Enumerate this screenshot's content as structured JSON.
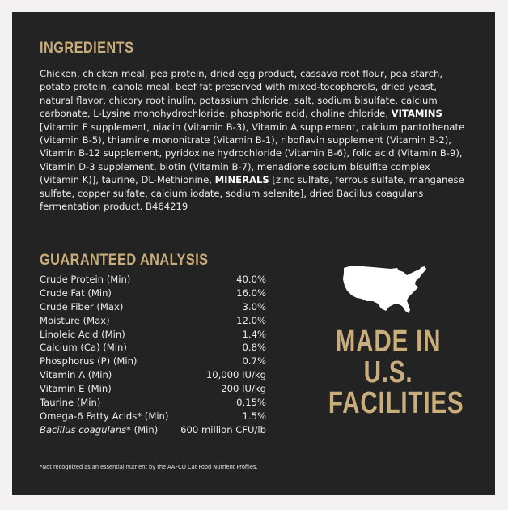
{
  "ingredients": {
    "heading": "INGREDIENTS",
    "part1": "Chicken, chicken meal, pea protein, dried egg product, cassava root flour, pea starch, potato protein, canola meal, beef fat preserved with mixed-tocopherols, dried yeast, natural flavor, chicory root inulin, potassium chloride, salt, sodium bisulfate, calcium carbonate, L-Lysine monohydrochloride, phosphoric acid, choline chloride, ",
    "vitamins_label": "VITAMINS",
    "part2": " [Vitamin E supplement, niacin (Vitamin B-3), Vitamin A supplement, calcium pantothenate (Vitamin B-5), thiamine mononitrate (Vitamin B-1), riboflavin supplement (Vitamin B-2), Vitamin B-12 supplement, pyridoxine hydrochloride (Vitamin B-6), folic acid (Vitamin B-9), Vitamin D-3 supplement, biotin (Vitamin B-7), menadione sodium bisulfite complex (Vitamin K)], taurine, DL-Methionine, ",
    "minerals_label": "MINERALS",
    "part3": " [zinc sulfate, ferrous sulfate, manganese sulfate, copper sulfate, calcium iodate, sodium selenite], dried Bacillus coagulans fermentation product. B464219"
  },
  "analysis": {
    "heading": "GUARANTEED ANALYSIS",
    "rows": [
      {
        "label": "Crude Protein (Min)",
        "value": "40.0%"
      },
      {
        "label": "Crude Fat (Min)",
        "value": "16.0%"
      },
      {
        "label": "Crude Fiber (Max)",
        "value": "3.0%"
      },
      {
        "label": "Moisture (Max)",
        "value": "12.0%"
      },
      {
        "label": "Linoleic Acid (Min)",
        "value": "1.4%"
      },
      {
        "label": "Calcium (Ca) (Min)",
        "value": "0.8%"
      },
      {
        "label": "Phosphorus (P) (Min)",
        "value": "0.7%"
      },
      {
        "label": "Vitamin A (Min)",
        "value": "10,000 IU/kg"
      },
      {
        "label": "Vitamin E (Min)",
        "value": "200 IU/kg"
      },
      {
        "label": "Taurine (Min)",
        "value": "0.15%"
      },
      {
        "label": "Omega-6 Fatty Acids* (Min)",
        "value": "1.5%"
      }
    ],
    "last_row": {
      "label_italic": "Bacillus coagulans",
      "label_rest": "* (Min)",
      "value": "600 million CFU/lb"
    }
  },
  "badge": {
    "icon": "usa-map-icon",
    "line1": "MADE IN",
    "line2": "U.S.",
    "line3": "FACILITIES"
  },
  "footnote": "*Not recognized as an essential nutrient by the AAFCO Cat Food Nutrient Profiles.",
  "colors": {
    "panel": "#232323",
    "accent": "#c9ad7a",
    "text": "#ececec",
    "border": "#f3f1f1"
  }
}
